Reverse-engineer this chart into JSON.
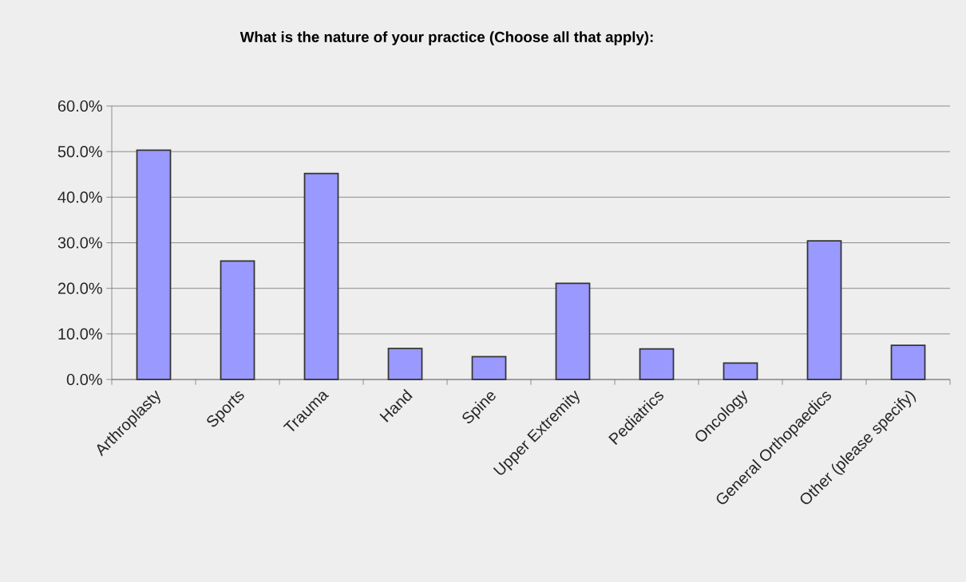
{
  "chart_data": {
    "type": "bar",
    "title": "What is the nature of your practice (Choose all that apply):",
    "categories": [
      "Arthroplasty",
      "Sports",
      "Trauma",
      "Hand",
      "Spine",
      "Upper Extremity",
      "Pediatrics",
      "Oncology",
      "General Orthopaedics",
      "Other (please specify)"
    ],
    "values": [
      50.3,
      26.0,
      45.2,
      6.8,
      5.0,
      21.1,
      6.7,
      3.6,
      30.4,
      7.5
    ],
    "color": "#9999ff",
    "ylim": [
      0,
      60
    ],
    "yticks": [
      {
        "value": 0,
        "label": "0.0%"
      },
      {
        "value": 10,
        "label": "10.0%"
      },
      {
        "value": 20,
        "label": "20.0%"
      },
      {
        "value": 30,
        "label": "30.0%"
      },
      {
        "value": 40,
        "label": "40.0%"
      },
      {
        "value": 50,
        "label": "50.0%"
      },
      {
        "value": 60,
        "label": "60.0%"
      }
    ],
    "grid": "y"
  }
}
